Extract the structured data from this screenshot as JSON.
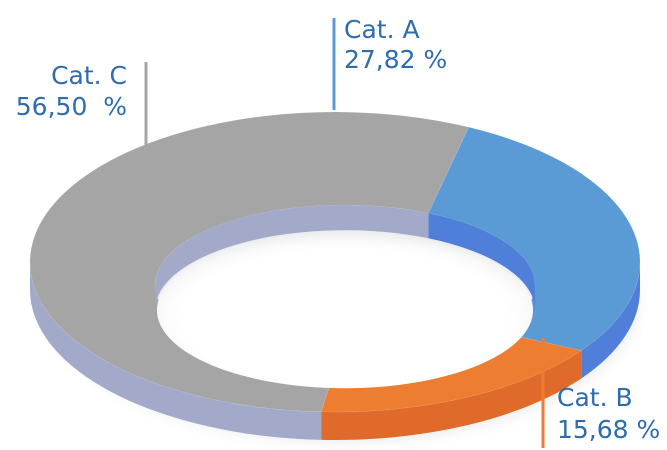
{
  "chart_data": {
    "type": "pie",
    "style": "3d-donut",
    "categories": [
      "Cat. A",
      "Cat. B",
      "Cat. C"
    ],
    "values": [
      27.82,
      15.68,
      56.5
    ],
    "labels": [
      {
        "name": "Cat. A",
        "value": "27,82 %"
      },
      {
        "name": "Cat. B",
        "value": "15,68 %"
      },
      {
        "name": "Cat. C",
        "value": "56,50  %"
      }
    ],
    "colors": {
      "Cat. A": "#5b9bd5",
      "Cat. B": "#ed7d31",
      "Cat. C": "#a5a5a5"
    },
    "side_colors": {
      "Cat. A": "#4f7fd8",
      "Cat. B": "#e06a2a",
      "Cat. C": "#a3a9c9"
    },
    "label_colors": {
      "Cat. A": "#2e6cae",
      "Cat. B": "#2e6cae",
      "Cat. C": "#2e6cae"
    },
    "title": "",
    "legend": "none"
  }
}
